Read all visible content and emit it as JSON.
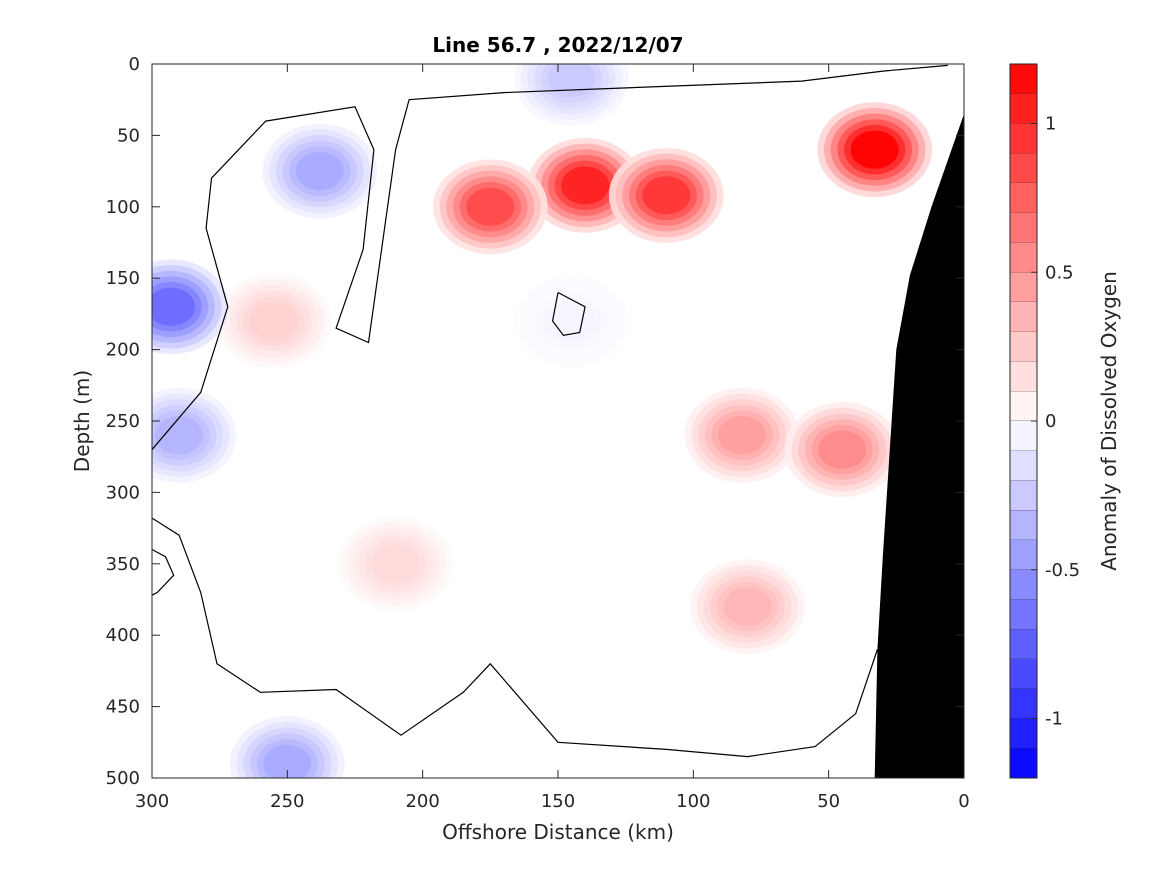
{
  "chart_data": {
    "type": "heatmap",
    "title": "Line 56.7 , 2022/12/07",
    "xlabel": "Offshore Distance (km)",
    "ylabel": "Depth (m)",
    "colorbar_label": "Anomaly of Dissolved Oxygen",
    "xlim": [
      300,
      0
    ],
    "ylim": [
      0,
      500
    ],
    "clim": [
      -1.2,
      1.2
    ],
    "x_axis_direction": "reversed",
    "y_axis_direction": "downward",
    "grid": false,
    "xticks": [
      300,
      250,
      200,
      150,
      100,
      50,
      0
    ],
    "yticks": [
      0,
      50,
      100,
      150,
      200,
      250,
      300,
      350,
      400,
      450,
      500
    ],
    "colorbar_ticks": [
      1,
      0.5,
      0,
      -0.5,
      -1
    ],
    "xtick_labels": [
      "300",
      "250",
      "200",
      "150",
      "100",
      "50",
      "0"
    ],
    "ytick_labels": [
      "0",
      "50",
      "100",
      "150",
      "200",
      "250",
      "300",
      "350",
      "400",
      "450",
      "500"
    ],
    "colorbar_tick_labels": [
      "1",
      "0.5",
      "0",
      "-0.5",
      "-1"
    ],
    "colormap": {
      "negative": "#0000ff",
      "zero": "#ffffff",
      "positive": "#ff0000"
    },
    "land_color": "#000000",
    "anomaly_features": [
      {
        "x": 140,
        "y": 85,
        "value": 1.05
      },
      {
        "x": 110,
        "y": 92,
        "value": 0.95
      },
      {
        "x": 175,
        "y": 100,
        "value": 0.85
      },
      {
        "x": 33,
        "y": 60,
        "value": 1.2
      },
      {
        "x": 82,
        "y": 260,
        "value": 0.45
      },
      {
        "x": 45,
        "y": 270,
        "value": 0.55
      },
      {
        "x": 80,
        "y": 380,
        "value": 0.35
      },
      {
        "x": 255,
        "y": 180,
        "value": 0.22
      },
      {
        "x": 210,
        "y": 350,
        "value": 0.18
      },
      {
        "x": 238,
        "y": 75,
        "value": -0.4
      },
      {
        "x": 293,
        "y": 170,
        "value": -0.7
      },
      {
        "x": 290,
        "y": 260,
        "value": -0.35
      },
      {
        "x": 250,
        "y": 490,
        "value": -0.4
      },
      {
        "x": 145,
        "y": 10,
        "value": -0.25
      },
      {
        "x": 145,
        "y": 180,
        "value": -0.05
      }
    ],
    "land_boundary": [
      {
        "x": 0,
        "y": 35
      },
      {
        "x": 12,
        "y": 100
      },
      {
        "x": 20,
        "y": 148
      },
      {
        "x": 25,
        "y": 200
      },
      {
        "x": 30,
        "y": 345
      },
      {
        "x": 32,
        "y": 410
      },
      {
        "x": 33,
        "y": 500
      }
    ],
    "zero_contour": [
      {
        "x": 300,
        "y": 270
      },
      {
        "x": 282,
        "y": 230
      },
      {
        "x": 272,
        "y": 170
      },
      {
        "x": 280,
        "y": 115
      },
      {
        "x": 278,
        "y": 80
      },
      {
        "x": 258,
        "y": 40
      },
      {
        "x": 225,
        "y": 30
      },
      {
        "x": 218,
        "y": 60
      },
      {
        "x": 222,
        "y": 130
      },
      {
        "x": 232,
        "y": 185
      },
      {
        "x": 220,
        "y": 195
      },
      {
        "x": 210,
        "y": 60
      },
      {
        "x": 205,
        "y": 25
      },
      {
        "x": 170,
        "y": 20
      },
      {
        "x": 60,
        "y": 12
      },
      {
        "x": 30,
        "y": 5
      },
      {
        "x": 6,
        "y": 1
      }
    ],
    "zero_contour_lower": [
      {
        "x": 300,
        "y": 318
      },
      {
        "x": 290,
        "y": 330
      },
      {
        "x": 282,
        "y": 370
      },
      {
        "x": 276,
        "y": 420
      },
      {
        "x": 260,
        "y": 440
      },
      {
        "x": 232,
        "y": 438
      },
      {
        "x": 208,
        "y": 470
      },
      {
        "x": 185,
        "y": 440
      },
      {
        "x": 175,
        "y": 420
      },
      {
        "x": 150,
        "y": 475
      },
      {
        "x": 110,
        "y": 480
      },
      {
        "x": 80,
        "y": 485
      },
      {
        "x": 55,
        "y": 478
      },
      {
        "x": 40,
        "y": 455
      },
      {
        "x": 32,
        "y": 410
      }
    ],
    "closed_contours": [
      [
        {
          "x": 150,
          "y": 160
        },
        {
          "x": 140,
          "y": 170
        },
        {
          "x": 142,
          "y": 188
        },
        {
          "x": 148,
          "y": 190
        },
        {
          "x": 152,
          "y": 180
        },
        {
          "x": 150,
          "y": 160
        }
      ],
      [
        {
          "x": 300,
          "y": 340
        },
        {
          "x": 295,
          "y": 345
        },
        {
          "x": 292,
          "y": 358
        },
        {
          "x": 298,
          "y": 370
        },
        {
          "x": 300,
          "y": 372
        }
      ]
    ]
  }
}
